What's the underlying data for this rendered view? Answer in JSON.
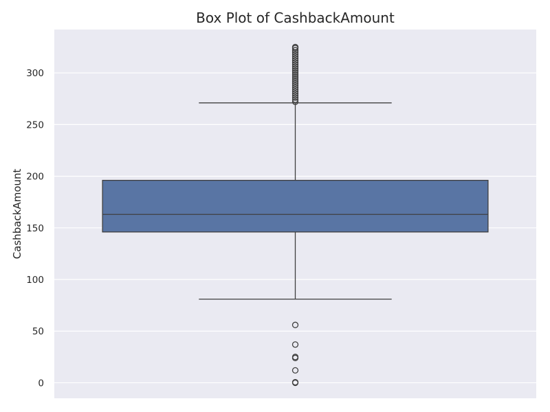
{
  "chart_data": {
    "type": "box",
    "title": "Box Plot of CashbackAmount",
    "xlabel": "",
    "ylabel": "CashbackAmount",
    "ylim": [
      -15,
      342
    ],
    "yticks": [
      0,
      50,
      100,
      150,
      200,
      250,
      300
    ],
    "grid": true,
    "series": [
      {
        "whisker_low": 81,
        "q1": 146,
        "median": 163,
        "q3": 196,
        "whisker_high": 271,
        "outliers": [
          0,
          0.5,
          12,
          24,
          25,
          37,
          56,
          272,
          274,
          276,
          278,
          280,
          282,
          284,
          286,
          288,
          290,
          292,
          294,
          296,
          298,
          300,
          302,
          304,
          306,
          308,
          310,
          312,
          314,
          316,
          318,
          320,
          322,
          324,
          325
        ]
      }
    ],
    "colors": {
      "background": "#eaeaf2",
      "box_fill": "#5975a4",
      "line": "#3f3f3f",
      "grid": "#ffffff"
    }
  }
}
